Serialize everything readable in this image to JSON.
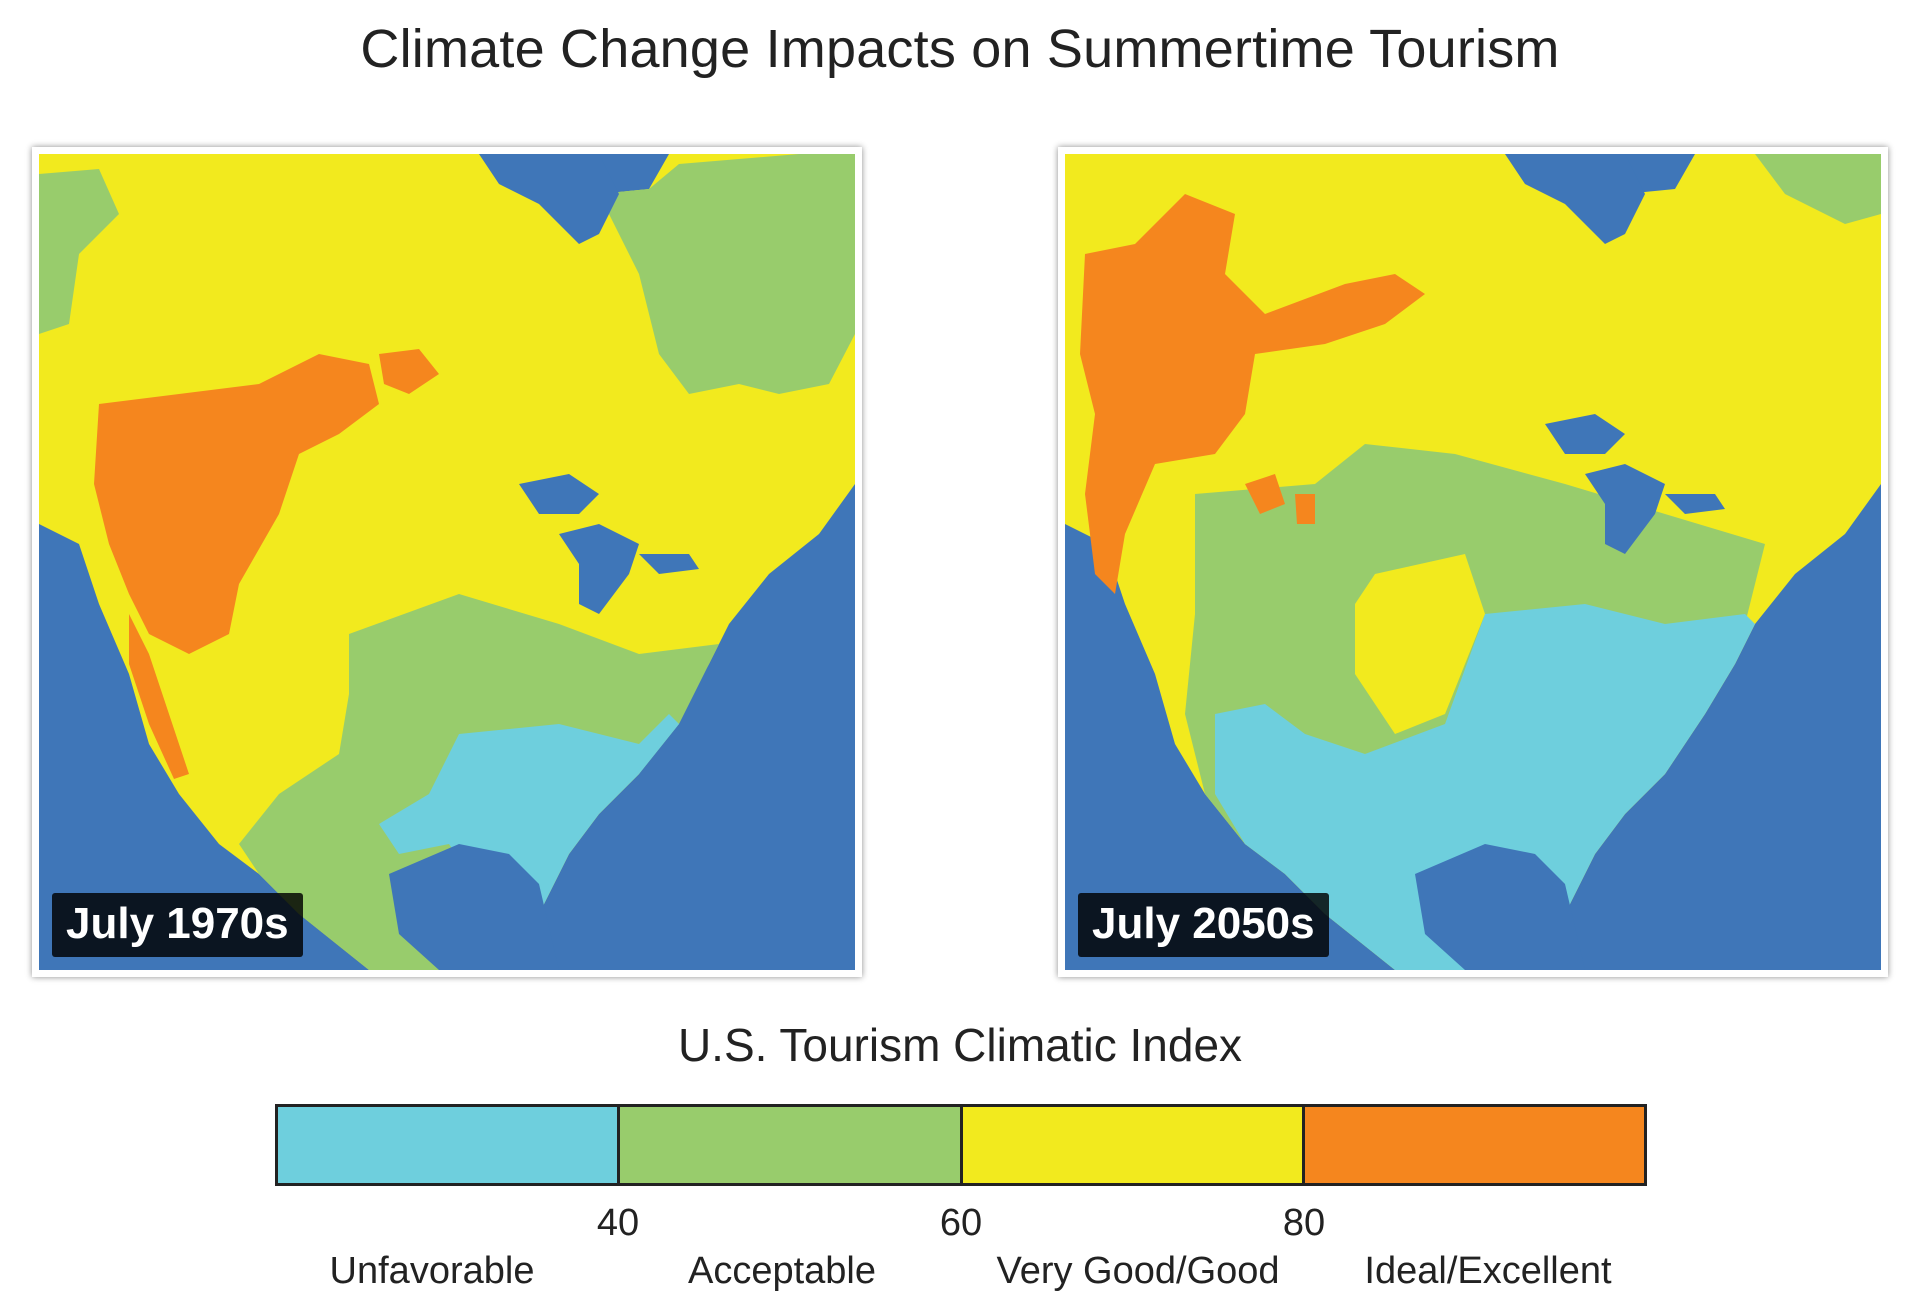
{
  "title": "Climate Change Impacts on Summertime Tourism",
  "maps": [
    {
      "label": "July 1970s"
    },
    {
      "label": "July 2050s"
    }
  ],
  "legend": {
    "title": "U.S. Tourism Climatic Index",
    "ticks": [
      "40",
      "60",
      "80"
    ],
    "categories": [
      "Unfavorable",
      "Acceptable",
      "Very Good/Good",
      "Ideal/Excellent"
    ]
  },
  "colors": {
    "water": "#3f76b8",
    "unfavorable": "#6ecfdd",
    "acceptable": "#98cc6c",
    "very_good": "#f2ea1e",
    "ideal": "#f5861e"
  }
}
